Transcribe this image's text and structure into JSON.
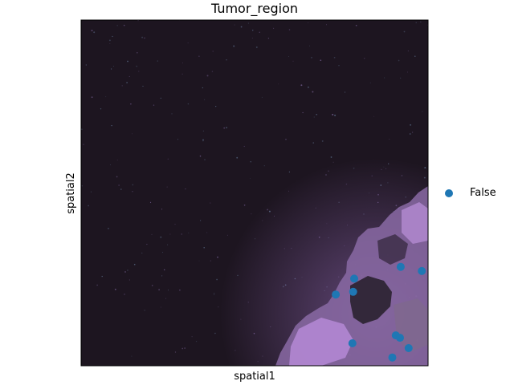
{
  "chart_data": {
    "type": "scatter",
    "title": "Tumor_region",
    "xlabel": "spatial1",
    "ylabel": "spatial2",
    "background": "tissue microscopy image",
    "axis_ticks": "none",
    "legend": {
      "placement": "right",
      "entries": [
        {
          "label": "False",
          "color": "#1f77b4"
        }
      ]
    },
    "series": [
      {
        "name": "False",
        "color": "#1f77b4",
        "points": [
          {
            "x": 0.921,
            "y": 0.286
          },
          {
            "x": 0.982,
            "y": 0.274
          },
          {
            "x": 0.787,
            "y": 0.252
          },
          {
            "x": 0.784,
            "y": 0.214
          },
          {
            "x": 0.734,
            "y": 0.206
          },
          {
            "x": 0.907,
            "y": 0.088
          },
          {
            "x": 0.919,
            "y": 0.081
          },
          {
            "x": 0.782,
            "y": 0.065
          },
          {
            "x": 0.944,
            "y": 0.051
          },
          {
            "x": 0.897,
            "y": 0.024
          }
        ]
      }
    ],
    "xlim": [
      0,
      1
    ],
    "ylim": [
      0,
      1
    ]
  }
}
